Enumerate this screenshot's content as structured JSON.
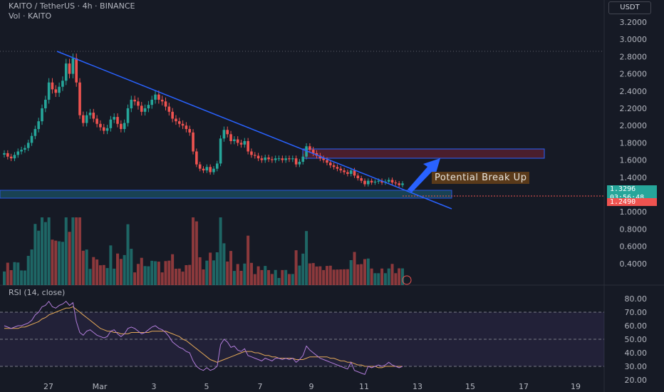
{
  "header": {
    "symbol_line": "KAITO / TetherUS · 4h · BINANCE",
    "vol_label": "Vol · KAITO",
    "currency": "USDT"
  },
  "rsi_label": "RSI (14, close)",
  "annotation": "Potential Break Up",
  "price_badges": {
    "last": "1.3296",
    "countdown": "03:56:48",
    "level": "1.2490"
  },
  "colors": {
    "up": "#26a69a",
    "down": "#ef5350",
    "trendline": "#2962ff",
    "rsi": "#b07cd8",
    "rsi_ma": "#e3a857",
    "resistance_box": "#4a1e2c",
    "support_box": "#1a4a5c"
  },
  "chart_data": [
    {
      "type": "candlestick",
      "title": "KAITO / TetherUS · 4h · BINANCE",
      "x_tick_labels": [
        "27",
        "Mar",
        "3",
        "5",
        "7",
        "9",
        "11",
        "13",
        "15",
        "17",
        "19"
      ],
      "price_axis_labels": [
        "3.2000",
        "3.0000",
        "2.8000",
        "2.6000",
        "2.4000",
        "2.2000",
        "2.0000",
        "1.8000",
        "1.6000",
        "1.4000",
        "1.0000",
        "0.8000",
        "0.6000",
        "0.4000"
      ],
      "ylim": [
        0.32,
        3.3
      ],
      "close": [
        1.68,
        1.64,
        1.62,
        1.66,
        1.7,
        1.72,
        1.74,
        1.8,
        1.88,
        1.96,
        2.05,
        2.2,
        2.3,
        2.5,
        2.42,
        2.38,
        2.45,
        2.52,
        2.72,
        2.6,
        2.78,
        2.5,
        2.12,
        2.03,
        2.12,
        2.15,
        2.08,
        2.02,
        1.98,
        1.94,
        1.97,
        2.07,
        2.1,
        2.02,
        1.96,
        2.03,
        2.2,
        2.3,
        2.28,
        2.23,
        2.16,
        2.2,
        2.24,
        2.3,
        2.36,
        2.3,
        2.28,
        2.22,
        2.16,
        2.08,
        2.05,
        2.02,
        2.0,
        1.96,
        1.92,
        1.7,
        1.55,
        1.5,
        1.48,
        1.52,
        1.46,
        1.5,
        1.56,
        1.85,
        1.95,
        1.9,
        1.82,
        1.84,
        1.8,
        1.78,
        1.82,
        1.7,
        1.66,
        1.65,
        1.62,
        1.6,
        1.63,
        1.61,
        1.6,
        1.62,
        1.62,
        1.6,
        1.62,
        1.61,
        1.62,
        1.55,
        1.58,
        1.64,
        1.76,
        1.72,
        1.68,
        1.65,
        1.62,
        1.6,
        1.57,
        1.54,
        1.52,
        1.5,
        1.48,
        1.46,
        1.44,
        1.48,
        1.42,
        1.39,
        1.36,
        1.32,
        1.36,
        1.34,
        1.35,
        1.36,
        1.34,
        1.35,
        1.37,
        1.34,
        1.33,
        1.31,
        1.3296
      ],
      "rsi": {
        "name": "RSI (14, close)",
        "ticks": [
          "80.00",
          "70.00",
          "60.00",
          "50.00",
          "40.00",
          "30.00",
          "20.00"
        ],
        "ylim": [
          20,
          80
        ],
        "levels": [
          70,
          50,
          30
        ],
        "values": [
          60,
          59,
          58,
          59,
          60,
          60,
          61,
          62,
          64,
          68,
          70,
          74,
          75,
          78,
          74,
          73,
          75,
          76,
          78,
          75,
          77,
          63,
          55,
          53,
          56,
          57,
          55,
          53,
          52,
          51,
          52,
          56,
          57,
          54,
          52,
          54,
          58,
          59,
          58,
          56,
          54,
          55,
          57,
          59,
          60,
          58,
          57,
          55,
          52,
          48,
          46,
          44,
          43,
          41,
          40,
          34,
          30,
          28,
          27,
          29,
          27,
          28,
          30,
          46,
          50,
          48,
          44,
          45,
          42,
          41,
          43,
          38,
          37,
          36,
          35,
          34,
          36,
          35,
          34,
          36,
          36,
          35,
          36,
          35,
          36,
          33,
          35,
          38,
          45,
          42,
          40,
          38,
          36,
          35,
          34,
          33,
          32,
          31,
          30,
          29,
          28,
          33,
          27,
          26,
          25,
          24,
          30,
          29,
          30,
          31,
          30,
          31,
          33,
          31,
          30,
          29,
          30
        ],
        "ma_values": [
          58,
          58,
          58,
          58,
          58,
          59,
          59,
          60,
          61,
          62,
          63,
          65,
          66,
          68,
          69,
          70,
          71,
          72,
          73,
          73,
          74,
          72,
          70,
          68,
          66,
          64,
          62,
          60,
          58,
          57,
          56,
          56,
          55,
          55,
          54,
          54,
          54,
          55,
          55,
          55,
          55,
          55,
          55,
          56,
          56,
          56,
          56,
          56,
          55,
          54,
          53,
          52,
          50,
          49,
          47,
          45,
          43,
          41,
          39,
          37,
          35,
          34,
          33,
          34,
          35,
          36,
          37,
          38,
          39,
          40,
          41,
          41,
          41,
          40,
          40,
          39,
          38,
          38,
          37,
          37,
          36,
          36,
          36,
          36,
          36,
          35,
          35,
          35,
          36,
          37,
          37,
          37,
          37,
          37,
          37,
          36,
          36,
          35,
          34,
          34,
          33,
          33,
          32,
          31,
          31,
          30,
          30,
          30,
          30,
          29,
          29,
          30,
          30,
          30,
          30,
          30,
          30
        ]
      }
    }
  ]
}
